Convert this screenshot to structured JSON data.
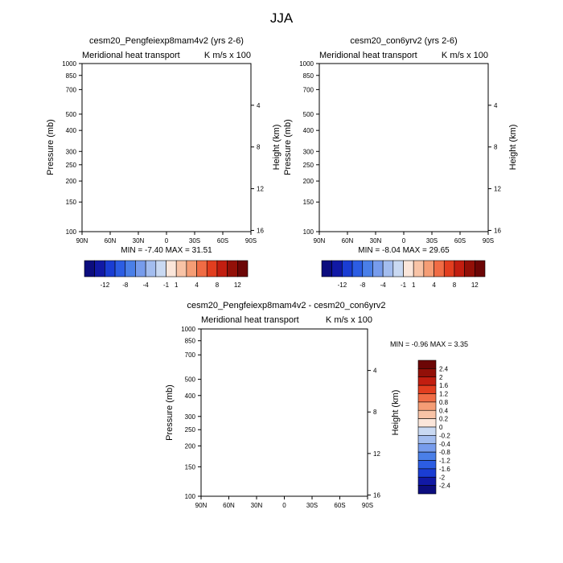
{
  "figure": {
    "title": "JJA"
  },
  "chart_data": [
    {
      "type": "heatmap",
      "title": "cesm20_Pengfeiexp8mam4v2 (yrs 2-6)",
      "subtitle_left": "Meridional heat transport",
      "subtitle_right": "K m/s x 100",
      "ylabel": "Pressure (mb)",
      "ylabel_right": "Height (km)",
      "x_ticks": [
        "90N",
        "60N",
        "30N",
        "0",
        "30S",
        "60S",
        "90S"
      ],
      "x_lim": [
        90,
        -90
      ],
      "y_ticks": [
        "100",
        "150",
        "200",
        "250",
        "300",
        "400",
        "500",
        "700",
        "850",
        "1000"
      ],
      "y_lim": [
        1000,
        100
      ],
      "y_scale": "log",
      "height_ticks": [
        "16",
        "12",
        "8",
        "4"
      ],
      "min_max_text": "MIN = -7.40  MAX = 31.51",
      "min": -7.4,
      "max": 31.51,
      "colorbar": {
        "labels": [
          "-12",
          "-8",
          "-4",
          "-1",
          "1",
          "4",
          "8",
          "12"
        ],
        "colors": [
          "#0c0d7e",
          "#1119a5",
          "#1a3dd3",
          "#2c5de3",
          "#4a7fe8",
          "#779cec",
          "#a3bdef",
          "#c9d9f2",
          "#fbe6da",
          "#f8c3a6",
          "#f59d75",
          "#f06c45",
          "#e23e1f",
          "#c21e10",
          "#931008",
          "#6c0606"
        ]
      }
    },
    {
      "type": "heatmap",
      "title": "cesm20_con6yrv2 (yrs 2-6)",
      "subtitle_left": "Meridional heat transport",
      "subtitle_right": "K m/s x 100",
      "ylabel": "Pressure (mb)",
      "ylabel_right": "Height (km)",
      "x_ticks": [
        "90N",
        "60N",
        "30N",
        "0",
        "30S",
        "60S",
        "90S"
      ],
      "x_lim": [
        90,
        -90
      ],
      "y_ticks": [
        "100",
        "150",
        "200",
        "250",
        "300",
        "400",
        "500",
        "700",
        "850",
        "1000"
      ],
      "y_lim": [
        1000,
        100
      ],
      "y_scale": "log",
      "height_ticks": [
        "16",
        "12",
        "8",
        "4"
      ],
      "min_max_text": "MIN = -8.04  MAX = 29.65",
      "min": -8.04,
      "max": 29.65,
      "colorbar": {
        "labels": [
          "-12",
          "-8",
          "-4",
          "-1",
          "1",
          "4",
          "8",
          "12"
        ],
        "colors": [
          "#0c0d7e",
          "#1119a5",
          "#1a3dd3",
          "#2c5de3",
          "#4a7fe8",
          "#779cec",
          "#a3bdef",
          "#c9d9f2",
          "#fbe6da",
          "#f8c3a6",
          "#f59d75",
          "#f06c45",
          "#e23e1f",
          "#c21e10",
          "#931008",
          "#6c0606"
        ]
      }
    },
    {
      "type": "heatmap",
      "title": "cesm20_Pengfeiexp8mam4v2 - cesm20_con6yrv2",
      "subtitle_left": "Meridional heat transport",
      "subtitle_right": "K m/s x 100",
      "ylabel": "Pressure (mb)",
      "ylabel_right": "Height (km)",
      "x_ticks": [
        "90N",
        "60N",
        "30N",
        "0",
        "30S",
        "60S",
        "90S"
      ],
      "x_lim": [
        90,
        -90
      ],
      "y_ticks": [
        "100",
        "150",
        "200",
        "250",
        "300",
        "400",
        "500",
        "700",
        "850",
        "1000"
      ],
      "y_lim": [
        1000,
        100
      ],
      "y_scale": "log",
      "height_ticks": [
        "16",
        "12",
        "8",
        "4"
      ],
      "min_max_text": "MIN =  -0.96  MAX =   3.35",
      "min": -0.96,
      "max": 3.35,
      "colorbar": {
        "labels": [
          "2.4",
          "2",
          "1.6",
          "1.2",
          "0.8",
          "0.4",
          "0.2",
          "0",
          "-0.2",
          "-0.4",
          "-0.8",
          "-1.2",
          "-1.6",
          "-2",
          "-2.4"
        ],
        "colors": [
          "#6c0606",
          "#931008",
          "#c21e10",
          "#e23e1f",
          "#f06c45",
          "#f59d75",
          "#f8c3a6",
          "#fbe6da",
          "#c9d9f2",
          "#a3bdef",
          "#779cec",
          "#4a7fe8",
          "#2c5de3",
          "#1a3dd3",
          "#1119a5",
          "#0c0d7e"
        ]
      }
    }
  ]
}
